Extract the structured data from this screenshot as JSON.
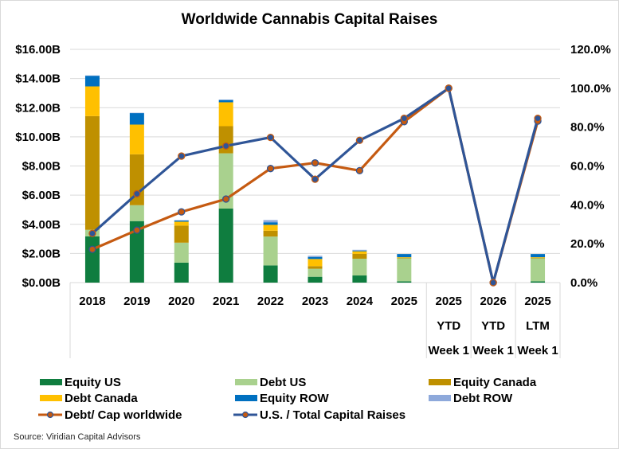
{
  "chart_data": {
    "type": "bar",
    "stacked": true,
    "title": "Worldwide Cannabis Capital Raises",
    "categories": [
      [
        "2018"
      ],
      [
        "2019"
      ],
      [
        "2020"
      ],
      [
        "2021"
      ],
      [
        "2022"
      ],
      [
        "2023"
      ],
      [
        "2024"
      ],
      [
        "2025"
      ],
      [
        "2025",
        "YTD",
        "Week 1"
      ],
      [
        "2026",
        "YTD",
        "Week 1"
      ],
      [
        "2025",
        "LTM",
        "Week 1"
      ]
    ],
    "y_left": {
      "ylim": [
        0,
        16
      ],
      "ticks": [
        "$0.00B",
        "$2.00B",
        "$4.00B",
        "$6.00B",
        "$8.00B",
        "$10.00B",
        "$12.00B",
        "$14.00B",
        "$16.00B"
      ],
      "tick_values": [
        0,
        2,
        4,
        6,
        8,
        10,
        12,
        14,
        16
      ],
      "unit": "USD billions"
    },
    "y_right": {
      "ylim": [
        0,
        120
      ],
      "ticks": [
        "0.0%",
        "20.0%",
        "40.0%",
        "60.0%",
        "80.0%",
        "100.0%",
        "120.0%"
      ],
      "tick_values": [
        0,
        20,
        40,
        60,
        80,
        100,
        120
      ],
      "unit": "percent"
    },
    "grid": true,
    "legend_position": "bottom",
    "bar_series": [
      {
        "name": "Equity US",
        "color": "#0F7D3F",
        "values": [
          3.17,
          4.22,
          1.37,
          5.08,
          1.18,
          0.4,
          0.49,
          0.09,
          0,
          0,
          0.09
        ]
      },
      {
        "name": "Debt US",
        "color": "#A9D18E",
        "values": [
          0.45,
          1.09,
          1.37,
          3.79,
          1.98,
          0.55,
          1.15,
          1.58,
          0,
          0,
          1.58
        ]
      },
      {
        "name": "Equity Canada",
        "color": "#BF9000",
        "values": [
          7.8,
          3.49,
          1.17,
          1.86,
          0.4,
          0.18,
          0.33,
          0.02,
          0,
          0,
          0.02
        ]
      },
      {
        "name": "Debt Canada",
        "color": "#FFC000",
        "values": [
          2.04,
          2.04,
          0.27,
          1.64,
          0.4,
          0.49,
          0.18,
          0.05,
          0,
          0,
          0.05
        ]
      },
      {
        "name": "Equity ROW",
        "color": "#0070C0",
        "values": [
          0.73,
          0.79,
          0.08,
          0.16,
          0.18,
          0.14,
          0.05,
          0.22,
          0,
          0,
          0.22
        ]
      },
      {
        "name": "Debt ROW",
        "color": "#8EA9DB",
        "values": [
          0.02,
          0.02,
          0.02,
          0.02,
          0.15,
          0.08,
          0.05,
          0,
          0,
          0,
          0
        ]
      }
    ],
    "line_series": [
      {
        "name": "Debt/ Cap worldwide",
        "axis": "right",
        "color": "#C55A11",
        "marker_edge": "#2F5597",
        "values": [
          17.1,
          27.0,
          36.4,
          43.0,
          58.7,
          61.6,
          57.6,
          82.8,
          100.0,
          0.0,
          83.1
        ]
      },
      {
        "name": "U.S. / Total Capital Raises",
        "axis": "right",
        "color": "#2F5597",
        "marker_edge": "#C55A11",
        "values": [
          25.3,
          45.7,
          65.1,
          70.3,
          74.7,
          53.2,
          73.2,
          84.5,
          100.0,
          0.0,
          84.5
        ]
      }
    ]
  },
  "legend": [
    {
      "label": "Equity US",
      "kind": "bar",
      "color": "#0F7D3F"
    },
    {
      "label": "Debt US",
      "kind": "bar",
      "color": "#A9D18E"
    },
    {
      "label": "Equity Canada",
      "kind": "bar",
      "color": "#BF9000"
    },
    {
      "label": "Debt Canada",
      "kind": "bar",
      "color": "#FFC000"
    },
    {
      "label": "Equity ROW",
      "kind": "bar",
      "color": "#0070C0"
    },
    {
      "label": "Debt ROW",
      "kind": "bar",
      "color": "#8EA9DB"
    },
    {
      "label": "Debt/ Cap worldwide",
      "kind": "line",
      "color": "#C55A11",
      "marker_edge": "#2F5597"
    },
    {
      "label": "U.S. / Total Capital Raises",
      "kind": "line",
      "color": "#2F5597",
      "marker_edge": "#C55A11"
    }
  ],
  "source": "Source: Viridian Capital Advisors"
}
